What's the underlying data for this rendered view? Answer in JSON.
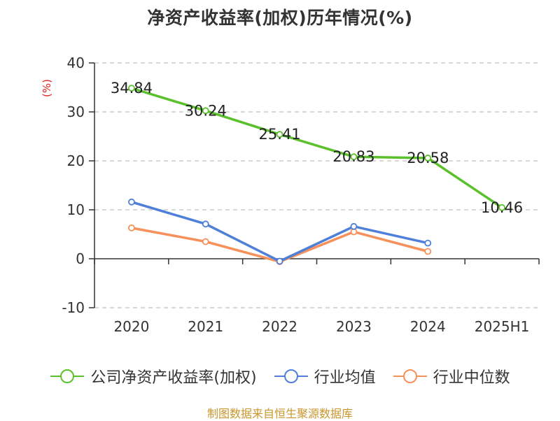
{
  "title": "净资产收益率(加权)历年情况(%)",
  "source": "制图数据来自恒生聚源数据库",
  "colors": {
    "series_main": "#5bc12b",
    "series_avg": "#4e7fd9",
    "series_median": "#f7915c",
    "axis": "#333333",
    "grid": "#cccccc",
    "unit_label": "#e01e1e",
    "source": "#c8962c"
  },
  "chart_data": {
    "type": "line",
    "title": "净资产收益率(加权)历年情况(%)",
    "ylabel": "(%)",
    "categories": [
      "2020",
      "2021",
      "2022",
      "2023",
      "2024",
      "2025H1"
    ],
    "ylim": [
      -10,
      40
    ],
    "yticks": [
      -10,
      0,
      10,
      20,
      30,
      40
    ],
    "grid": true,
    "legend_position": "bottom",
    "series": [
      {
        "name": "公司净资产收益率(加权)",
        "values": [
          34.84,
          30.24,
          25.41,
          20.83,
          20.58,
          10.46
        ],
        "data_labels": [
          "34.84",
          "30.24",
          "25.41",
          "20.83",
          "20.58",
          "10.46"
        ]
      },
      {
        "name": "行业均值",
        "values": [
          11.6,
          7.1,
          -0.5,
          6.6,
          3.2,
          null
        ]
      },
      {
        "name": "行业中位数",
        "values": [
          6.3,
          3.5,
          -0.6,
          5.5,
          1.5,
          null
        ]
      }
    ]
  }
}
